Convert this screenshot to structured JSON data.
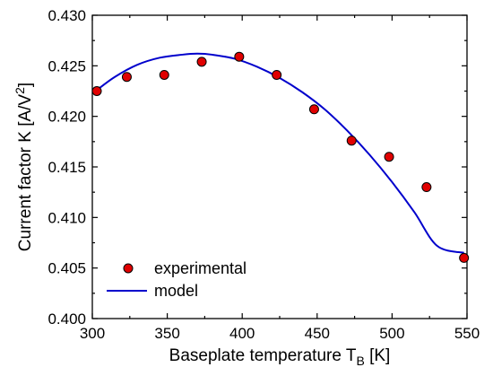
{
  "chart_data": {
    "type": "scatter",
    "title": "",
    "xlabel": "Baseplate temperature T",
    "xlabel_sub": "B",
    "xlabel_unit": " [K]",
    "ylabel": "Current factor K [A/V",
    "ylabel_sup": "2",
    "ylabel_end": "]",
    "xlim": [
      300,
      550
    ],
    "ylim": [
      0.4,
      0.43
    ],
    "xticks": [
      300,
      350,
      400,
      450,
      500,
      550
    ],
    "xtick_labels": [
      "300",
      "350",
      "400",
      "450",
      "500",
      "550"
    ],
    "yticks": [
      0.4,
      0.405,
      0.41,
      0.415,
      0.42,
      0.425,
      0.43
    ],
    "ytick_labels": [
      "0.400",
      "0.405",
      "0.410",
      "0.415",
      "0.420",
      "0.425",
      "0.430"
    ],
    "grid": false,
    "legend_position": "bottom-left",
    "series": [
      {
        "name": "experimental",
        "type": "scatter",
        "color": "#e00000",
        "x": [
          303,
          323,
          348,
          373,
          398,
          423,
          448,
          473,
          498,
          523,
          548
        ],
        "y": [
          0.4225,
          0.4239,
          0.4241,
          0.4254,
          0.4259,
          0.4241,
          0.4207,
          0.4176,
          0.416,
          0.413,
          0.406
        ]
      },
      {
        "name": "model",
        "type": "line",
        "color": "#0000cc",
        "x": [
          303,
          315,
          330,
          345,
          360,
          370,
          380,
          395,
          410,
          425,
          440,
          455,
          470,
          485,
          500,
          515,
          530,
          548
        ],
        "y": [
          0.4226,
          0.4239,
          0.4251,
          0.4258,
          0.4261,
          0.4262,
          0.4261,
          0.4257,
          0.4249,
          0.4238,
          0.4224,
          0.4207,
          0.4186,
          0.4162,
          0.4135,
          0.4105,
          0.4072,
          0.4065
        ]
      }
    ]
  }
}
